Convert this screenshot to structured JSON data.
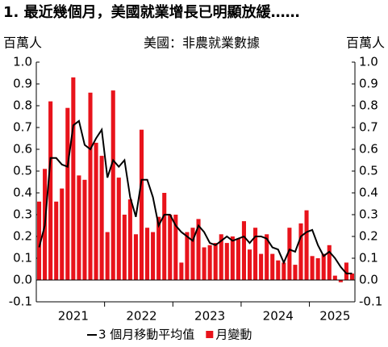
{
  "chart_data": {
    "type": "bar-line",
    "title": "1. 最近幾個月，美國就業增長已明顯放緩……",
    "subtitle": "美國：非農就業數據",
    "y_label": "百萬人",
    "y2_label": "百萬人",
    "categories": [
      null,
      null,
      null,
      null,
      null,
      null,
      "2021",
      null,
      null,
      null,
      null,
      null,
      null,
      null,
      null,
      null,
      null,
      null,
      "2022",
      null,
      null,
      null,
      null,
      null,
      null,
      null,
      null,
      null,
      null,
      null,
      "2023",
      null,
      null,
      null,
      null,
      null,
      null,
      null,
      null,
      null,
      null,
      null,
      "2024",
      null,
      null,
      null,
      null,
      null,
      null,
      null,
      null,
      null,
      "2025",
      null,
      null,
      null
    ],
    "series": [
      {
        "name": "月變動",
        "color": "#e8131b",
        "kind": "bar",
        "values": [
          0.36,
          0.51,
          0.82,
          0.36,
          0.42,
          0.79,
          0.93,
          0.48,
          0.46,
          0.86,
          0.63,
          0.57,
          0.22,
          0.87,
          0.47,
          0.3,
          0.37,
          0.21,
          0.69,
          0.24,
          0.22,
          0.29,
          0.4,
          0.3,
          0.3,
          0.08,
          0.22,
          0.24,
          0.28,
          0.15,
          0.16,
          0.17,
          0.21,
          0.17,
          0.2,
          0.19,
          0.27,
          0.14,
          0.24,
          0.12,
          0.21,
          0.12,
          0.09,
          0.08,
          0.24,
          0.07,
          0.26,
          0.32,
          0.11,
          0.1,
          0.12,
          0.16,
          0.02,
          -0.01,
          0.08,
          0.03
        ]
      },
      {
        "name": "3 個月移動平均值",
        "color": "#000000",
        "kind": "line",
        "values": [
          0.15,
          0.25,
          0.56,
          0.56,
          0.53,
          0.52,
          0.71,
          0.73,
          0.62,
          0.6,
          0.65,
          0.69,
          0.47,
          0.55,
          0.52,
          0.55,
          0.38,
          0.29,
          0.46,
          0.46,
          0.38,
          0.25,
          0.3,
          0.3,
          0.25,
          0.22,
          0.2,
          0.18,
          0.25,
          0.22,
          0.17,
          0.16,
          0.18,
          0.2,
          0.18,
          0.19,
          0.2,
          0.17,
          0.2,
          0.2,
          0.19,
          0.15,
          0.14,
          0.08,
          0.14,
          0.13,
          0.2,
          0.22,
          0.23,
          0.16,
          0.11,
          0.13,
          0.1,
          0.06,
          0.03,
          0.03
        ]
      }
    ],
    "ylim": [
      -0.1,
      1.0
    ],
    "yticks": [
      -0.1,
      {
        "value": 0,
        "label": "0.0"
      },
      0.1,
      0.2,
      0.3,
      0.4,
      0.5,
      0.6,
      0.7,
      0.8,
      0.9,
      {
        "value": 1,
        "label": "1.0"
      }
    ],
    "y2lim": [
      -0.1,
      1.0
    ],
    "y2ticks": [
      -0.1,
      {
        "value": 0,
        "label": "0.0"
      },
      0.1,
      0.2,
      0.3,
      0.4,
      0.5,
      0.6,
      0.7,
      0.8,
      0.9,
      {
        "value": 1,
        "label": "1.0"
      }
    ]
  }
}
